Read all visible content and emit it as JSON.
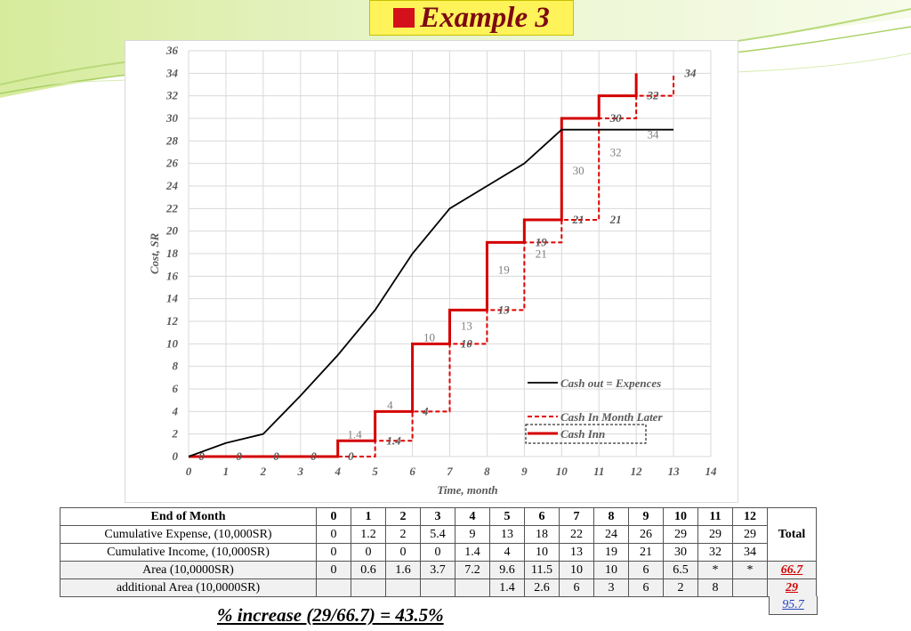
{
  "slide": {
    "title": "Example 3",
    "footnote": "% increase (29/66.7) = 43.5%"
  },
  "chart_data": {
    "type": "line",
    "xlabel": "Time, month",
    "ylabel": "Cost, SR",
    "xlim": [
      0,
      14
    ],
    "ylim": [
      0,
      36
    ],
    "x_ticks": [
      0,
      1,
      2,
      3,
      4,
      5,
      6,
      7,
      8,
      9,
      10,
      11,
      12,
      13,
      14
    ],
    "y_ticks": [
      0,
      2,
      4,
      6,
      8,
      10,
      12,
      14,
      16,
      18,
      20,
      22,
      24,
      26,
      28,
      30,
      32,
      34,
      36
    ],
    "grid": true,
    "legend_position": "bottom-right",
    "series": [
      {
        "name": "Cash out = Expences",
        "style": "solid-black",
        "x": [
          0,
          1,
          2,
          3,
          4,
          5,
          6,
          7,
          8,
          9,
          10,
          11,
          12,
          13
        ],
        "y": [
          0,
          1.2,
          2,
          5.4,
          9,
          13,
          18,
          22,
          24,
          26,
          29,
          29,
          29,
          29
        ]
      },
      {
        "name": "Cash In Month Later",
        "style": "dashed-red-step",
        "x": [
          0,
          1,
          2,
          3,
          4,
          5,
          6,
          7,
          8,
          9,
          10,
          11,
          12,
          13
        ],
        "y": [
          0,
          0,
          0,
          0,
          0,
          1.4,
          4,
          10,
          13,
          19,
          21,
          30,
          32,
          34
        ]
      },
      {
        "name": "Cash Inn",
        "style": "solid-red-step",
        "x": [
          0,
          1,
          2,
          3,
          4,
          5,
          6,
          7,
          8,
          9,
          10,
          11,
          12
        ],
        "y": [
          0,
          0,
          0,
          0,
          1.4,
          4,
          10,
          13,
          19,
          21,
          30,
          32,
          34
        ]
      }
    ],
    "annotations_dashed": [
      {
        "text": "0",
        "x": 0.35,
        "y": 0
      },
      {
        "text": "0",
        "x": 1.35,
        "y": 0
      },
      {
        "text": "0",
        "x": 2.35,
        "y": 0
      },
      {
        "text": "0",
        "x": 3.35,
        "y": 0
      },
      {
        "text": "0",
        "x": 4.35,
        "y": 0
      },
      {
        "text": "1.4",
        "x": 5.5,
        "y": 1.4
      },
      {
        "text": "4",
        "x": 6.35,
        "y": 4
      },
      {
        "text": "10",
        "x": 7.45,
        "y": 10
      },
      {
        "text": "13",
        "x": 8.45,
        "y": 13
      },
      {
        "text": "19",
        "x": 9.45,
        "y": 19
      },
      {
        "text": "21",
        "x": 10.45,
        "y": 21
      },
      {
        "text": "21",
        "x": 11.45,
        "y": 21
      },
      {
        "text": "30",
        "x": 11.45,
        "y": 30
      },
      {
        "text": "32",
        "x": 12.45,
        "y": 32
      },
      {
        "text": "34",
        "x": 13.45,
        "y": 34
      }
    ],
    "annotations_inn": [
      {
        "text": "1.4",
        "x": 4.45,
        "y": 1.4
      },
      {
        "text": "4",
        "x": 5.4,
        "y": 4
      },
      {
        "text": "10",
        "x": 6.45,
        "y": 10
      },
      {
        "text": "13",
        "x": 7.45,
        "y": 11
      },
      {
        "text": "19",
        "x": 8.45,
        "y": 16
      },
      {
        "text": "21",
        "x": 9.45,
        "y": 17.4
      },
      {
        "text": "30",
        "x": 10.45,
        "y": 24.8
      },
      {
        "text": "32",
        "x": 11.45,
        "y": 26.4
      },
      {
        "text": "34",
        "x": 12.45,
        "y": 28
      }
    ]
  },
  "table": {
    "headers": [
      "End of Month",
      "0",
      "1",
      "2",
      "3",
      "4",
      "5",
      "6",
      "7",
      "8",
      "9",
      "10",
      "11",
      "12"
    ],
    "total_label": "Total",
    "rows": [
      {
        "label": "Cumulative Expense, (10,000SR)",
        "cells": [
          "0",
          "1.2",
          "2",
          "5.4",
          "9",
          "13",
          "18",
          "22",
          "24",
          "26",
          "29",
          "29",
          "29"
        ]
      },
      {
        "label": "Cumulative Income, (10,000SR)",
        "cells": [
          "0",
          "0",
          "0",
          "0",
          "1.4",
          "4",
          "10",
          "13",
          "19",
          "21",
          "30",
          "32",
          "34"
        ]
      },
      {
        "label": "Area (10,0000SR)",
        "cells": [
          "0",
          "0.6",
          "1.6",
          "3.7",
          "7.2",
          "9.6",
          "11.5",
          "10",
          "10",
          "6",
          "6.5",
          "*",
          "*"
        ],
        "total": "66.7"
      },
      {
        "label": "additional Area (10,0000SR)",
        "cells": [
          "",
          "",
          "",
          "",
          "",
          "1.4",
          "2.6",
          "6",
          "3",
          "6",
          "2",
          "8",
          ""
        ],
        "total": "29"
      }
    ],
    "grand_total": "95.7"
  },
  "colors": {
    "title_bg": "#fff35a",
    "title_text": "#7d0a12",
    "accent_red": "#d40000",
    "expense_line": "#000000",
    "grid": "#d9d9d9",
    "grand_total": "#1f3fbf"
  }
}
